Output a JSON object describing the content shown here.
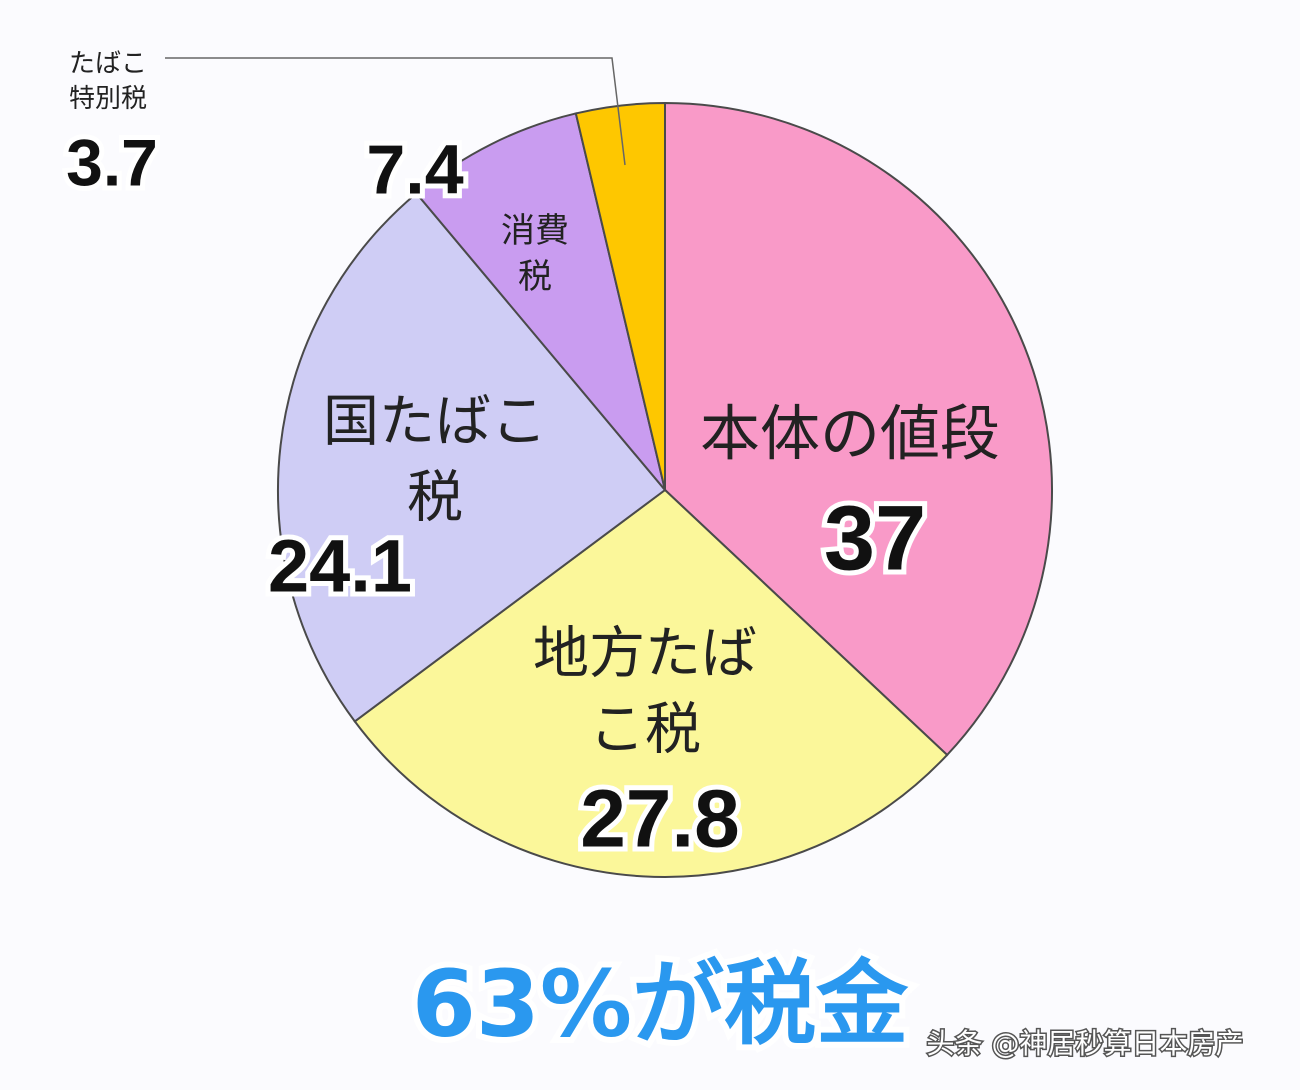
{
  "chart_data": {
    "type": "pie",
    "title": "63%が税金",
    "categories": [
      "本体の値段",
      "地方たばこ税",
      "国たばこ税",
      "消費税",
      "たばこ特別税"
    ],
    "values": [
      37,
      27.8,
      24.1,
      7.4,
      3.7
    ],
    "colors": [
      "#f99ac8",
      "#fbf79a",
      "#cfcdf5",
      "#c99cf0",
      "#fec700"
    ],
    "watermark": "头条 @神居秒算日本房产"
  }
}
